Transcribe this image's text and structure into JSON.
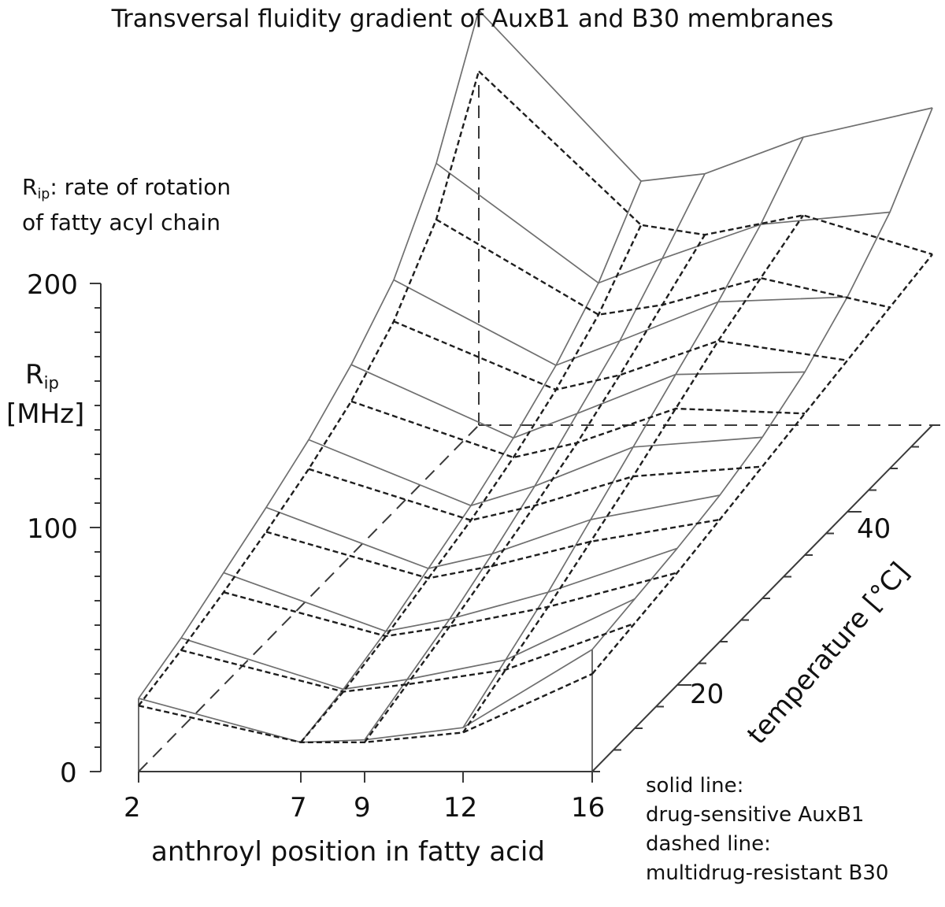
{
  "title": "Transversal fluidity gradient of AuxB1 and B30 membranes",
  "zaxis": {
    "symbol_base": "R",
    "symbol_sub": "ip",
    "unit": "[MHz]",
    "description_rest": ": rate of rotation",
    "description_line2": "of fatty acyl chain"
  },
  "legend": {
    "line1": "solid line:",
    "line2": "drug-sensitive AuxB1",
    "line3": "dashed line:",
    "line4": "multidrug-resistant B30"
  },
  "colors": {
    "solid": "#6f6f6f",
    "dashed": "#1e1e1e",
    "axes": "#3a3a3a"
  },
  "chart_data": {
    "type": "surface",
    "title": "Transversal fluidity gradient of AuxB1 and B30 membranes",
    "xlabel": "anthroyl position in fatty acid",
    "ylabel": "temperature [°C]",
    "zlabel": "R_ip [MHz]",
    "x": [
      2,
      7,
      9,
      12,
      16
    ],
    "x_ticks": [
      "2",
      "7",
      "9",
      "12",
      "16"
    ],
    "y_ticks": [
      "20",
      "40"
    ],
    "y_range": [
      10,
      50
    ],
    "z_ticks": [
      "0",
      "100",
      "200"
    ],
    "zlim": [
      0,
      200
    ],
    "legend_position": "bottom-right",
    "series": [
      {
        "name": "drug-sensitive AuxB1",
        "style": "solid",
        "profiles": [
          {
            "temperature": 10,
            "values": [
              30,
              12,
              13,
              18,
              50
            ]
          },
          {
            "temperature": 15,
            "values": [
              37,
              16,
              20,
              28,
              53
            ]
          },
          {
            "temperature": 20,
            "values": [
              46,
              22,
              27,
              38,
              56
            ]
          },
          {
            "temperature": 25,
            "values": [
              55,
              30,
              36,
              50,
              60
            ]
          },
          {
            "temperature": 30,
            "values": [
              65,
              38,
              46,
              62,
              66
            ]
          },
          {
            "temperature": 35,
            "values": [
              78,
              48,
              58,
              74,
              75
            ]
          },
          {
            "temperature": 40,
            "values": [
              95,
              60,
              70,
              86,
              88
            ]
          },
          {
            "temperature": 45,
            "values": [
              125,
              76,
              86,
              100,
              105
            ]
          },
          {
            "temperature": 50,
            "values": [
              170,
              100,
              103,
              118,
              130
            ]
          }
        ]
      },
      {
        "name": "multidrug-resistant B30",
        "style": "dashed",
        "profiles": [
          {
            "temperature": 10,
            "values": [
              27,
              12,
              12,
              16,
              40
            ]
          },
          {
            "temperature": 15,
            "values": [
              32,
              15,
              18,
              24,
              43
            ]
          },
          {
            "temperature": 20,
            "values": [
              38,
              20,
              24,
              32,
              46
            ]
          },
          {
            "temperature": 25,
            "values": [
              45,
              26,
              31,
              41,
              50
            ]
          },
          {
            "temperature": 30,
            "values": [
              53,
              32,
              38,
              50,
              54
            ]
          },
          {
            "temperature": 35,
            "values": [
              63,
              40,
              46,
              60,
              58
            ]
          },
          {
            "temperature": 40,
            "values": [
              78,
              50,
              56,
              70,
              62
            ]
          },
          {
            "temperature": 45,
            "values": [
              102,
              63,
              67,
              78,
              66
            ]
          },
          {
            "temperature": 50,
            "values": [
              145,
              82,
              78,
              86,
              70
            ]
          }
        ]
      }
    ]
  }
}
